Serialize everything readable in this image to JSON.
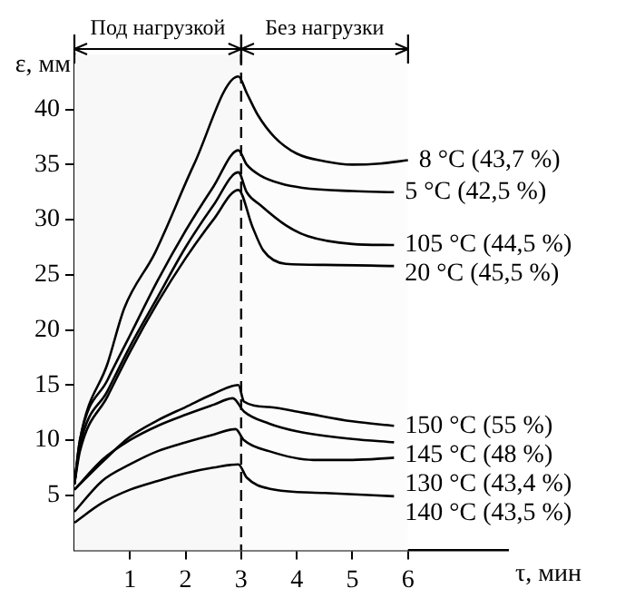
{
  "chart_data": {
    "type": "line",
    "xlabel": "τ, мин",
    "ylabel": "ε, мм",
    "xlim": [
      0,
      7.8
    ],
    "ylim": [
      0,
      45
    ],
    "xticks": [
      1,
      2,
      3,
      4,
      5,
      6
    ],
    "yticks": [
      5,
      10,
      15,
      20,
      25,
      30,
      35,
      40
    ],
    "grid": false,
    "legend": false,
    "marker": "none",
    "line_style": "solid",
    "ref_lines": [
      {
        "axis": "x",
        "value": 3,
        "line_style": "dashed",
        "color": "#000000"
      }
    ],
    "bands": [
      {
        "axis": "x",
        "from": 0,
        "to": 3,
        "label": "Под нагрузкой",
        "color": "#f8f8f8"
      },
      {
        "axis": "x",
        "from": 3,
        "to": 6,
        "label": "Без нагрузки",
        "color": "#fcfcfc"
      }
    ],
    "series": [
      {
        "name": "8 °C (43,7 %)",
        "color": "#000000",
        "x": [
          0,
          0.1,
          0.6,
          0.9,
          1.45,
          2.15,
          2.95,
          3.1,
          3.3,
          3.6,
          4,
          4.5,
          5,
          5.5,
          6
        ],
        "values": [
          6,
          10,
          17,
          22,
          27,
          35,
          43,
          41.5,
          39.5,
          37.5,
          36,
          35.3,
          35,
          35.1,
          35.4
        ]
      },
      {
        "name": "5 °C (42,5 %)",
        "color": "#000000",
        "x": [
          0,
          0.1,
          0.6,
          1,
          1.5,
          2,
          2.5,
          2.95,
          3.1,
          3.35,
          3.7,
          4.1,
          5,
          5.75
        ],
        "values": [
          6,
          10,
          15.5,
          19.5,
          24.5,
          29,
          33,
          36.3,
          35,
          34,
          33.3,
          32.9,
          32.6,
          32.5
        ]
      },
      {
        "name": "105 °C (44,5 %)",
        "color": "#000000",
        "x": [
          0,
          0.1,
          0.6,
          1,
          1.5,
          2,
          2.5,
          2.95,
          3.1,
          3.35,
          3.8,
          4.2,
          5,
          5.75
        ],
        "values": [
          6,
          9.5,
          14.5,
          18.5,
          23,
          27.5,
          31.3,
          34.3,
          32.5,
          31.3,
          29.5,
          28.5,
          27.8,
          27.7
        ]
      },
      {
        "name": "20 °C (45,5 %)",
        "color": "#000000",
        "x": [
          0,
          0.1,
          0.6,
          1,
          1.5,
          2,
          2.5,
          2.95,
          3.2,
          3.4,
          3.8,
          4.5,
          5.75
        ],
        "values": [
          6,
          9,
          14,
          18,
          22.5,
          26.5,
          30,
          32.7,
          29.4,
          27.2,
          26,
          25.9,
          25.8
        ]
      },
      {
        "name": "150 °C (55 %)",
        "color": "#000000",
        "x": [
          0,
          0.5,
          1,
          1.5,
          2,
          2.5,
          2.95,
          3.05,
          3.5,
          4.1,
          5,
          5.75
        ],
        "values": [
          5.5,
          8,
          10.3,
          11.8,
          13,
          14.2,
          15,
          13.5,
          13,
          12.5,
          11.7,
          11.3
        ]
      },
      {
        "name": "145 °C (48 %)",
        "color": "#000000",
        "x": [
          0,
          0.5,
          1,
          1.5,
          2,
          2.5,
          2.85,
          3.05,
          3.5,
          4,
          5,
          5.75
        ],
        "values": [
          5.5,
          8.2,
          10,
          11.3,
          12.3,
          13.2,
          13.8,
          12.6,
          11.5,
          10.8,
          10.1,
          9.8
        ]
      },
      {
        "name": "130 °C (43,4 %)",
        "color": "#000000",
        "x": [
          0,
          0.5,
          1,
          1.5,
          2,
          2.5,
          2.9,
          3.05,
          3.5,
          4.3,
          5,
          5.75
        ],
        "values": [
          3.5,
          6.3,
          7.8,
          9,
          9.8,
          10.5,
          11,
          10,
          9,
          8.2,
          8.2,
          8.4
        ]
      },
      {
        "name": "140 °C (43,5 %)",
        "color": "#000000",
        "x": [
          0,
          0.5,
          1,
          1.5,
          2,
          2.5,
          2.95,
          3.1,
          3.5,
          4.5,
          5.75
        ],
        "values": [
          2.5,
          4.3,
          5.5,
          6.3,
          7,
          7.5,
          7.8,
          6.6,
          5.6,
          5.2,
          4.9
        ]
      }
    ]
  }
}
